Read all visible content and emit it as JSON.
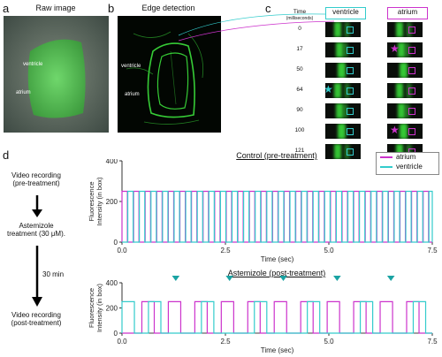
{
  "panels": {
    "a": {
      "letter": "a",
      "title": "Raw image",
      "labels": {
        "ventricle": "ventricle",
        "atrium": "atrium"
      }
    },
    "b": {
      "letter": "b",
      "title": "Edge detection",
      "labels": {
        "ventricle": "ventricle",
        "atrium": "atrium"
      }
    },
    "c": {
      "letter": "c",
      "time_header": "Time",
      "time_unit": "(milliseconds)",
      "ventricle_header": "ventricle",
      "atrium_header": "atrium",
      "times": [
        "0",
        "17",
        "50",
        "64",
        "90",
        "100",
        "121"
      ],
      "ventricle_star_row": 3,
      "atrium_star_rows": [
        1,
        5
      ]
    },
    "d": {
      "letter": "d"
    }
  },
  "flow": {
    "step1": "Video recording\n(pre-treatment)",
    "step2": "Astemizole\ntreatment (30 μM).",
    "interval": "30 min",
    "step3": "Video recording\n(post-treatment)"
  },
  "colors": {
    "atrium": "#cc33cc",
    "ventricle": "#33cccc",
    "arrowhead": "#1aa3a3",
    "green": "#39d639"
  },
  "chart_data": [
    {
      "type": "line",
      "title": "Control (pre-treatment)",
      "xlabel": "Time (sec)",
      "ylabel": "Fluorescence\nIntensity (in box)",
      "xlim": [
        0,
        7.5
      ],
      "ylim": [
        0,
        400
      ],
      "xticks": [
        "0.0",
        "2.5",
        "5.0",
        "7.5"
      ],
      "yticks": [
        "0",
        "200",
        "400"
      ],
      "legend": "top-right",
      "series": [
        {
          "name": "atrium",
          "period": 0.28,
          "on_duration": 0.13,
          "phase": 0.0,
          "high": 250,
          "low": 0
        },
        {
          "name": "ventricle",
          "period": 0.28,
          "on_duration": 0.13,
          "phase": 0.14,
          "high": 250,
          "low": 0
        }
      ]
    },
    {
      "type": "line",
      "title": "Astemizole (post-treatment)",
      "xlabel": "Time (sec)",
      "ylabel": "Fluorescence\nIntensity (in box)",
      "xlim": [
        0,
        7.5
      ],
      "ylim": [
        0,
        400
      ],
      "xticks": [
        "0.0",
        "2.5",
        "5.0",
        "7.5"
      ],
      "yticks": [
        "0",
        "200",
        "400"
      ],
      "series": [
        {
          "name": "atrium",
          "period": 0.64,
          "on_duration": 0.3,
          "phase": 0.48,
          "high": 250,
          "low": 0
        },
        {
          "name": "ventricle",
          "period": 0.64,
          "on_duration": 0.3,
          "phase": 0.0,
          "high": 250,
          "low": 0,
          "skipped_beats_at": [
            1.3,
            2.6,
            3.9,
            5.2,
            6.5
          ]
        }
      ],
      "annotation_arrows_x": [
        1.3,
        2.6,
        3.9,
        5.2,
        6.5
      ]
    }
  ]
}
